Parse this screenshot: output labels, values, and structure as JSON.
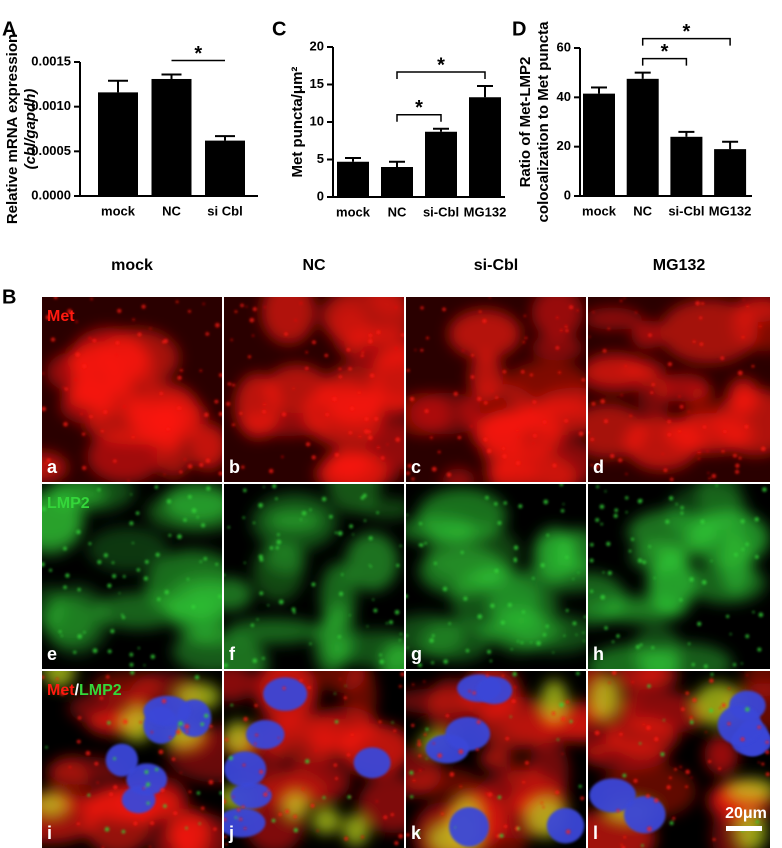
{
  "chart_data": [
    {
      "type": "bar",
      "panel": "A",
      "ylabel": [
        "Relative mRNA expression",
        "(cbl/gapdh)"
      ],
      "categories": [
        "mock",
        "NC",
        "si Cbl"
      ],
      "values": [
        0.00116,
        0.00131,
        0.00062
      ],
      "errors": [
        0.00013,
        5e-05,
        5e-05
      ],
      "color": "#000000",
      "ylim": [
        0,
        0.0015
      ],
      "yticks": [
        {
          "value": 0,
          "label": "0.0000"
        },
        0.0005,
        {
          "value": 0.001,
          "label": "0.0010"
        },
        0.0015
      ],
      "significance": [
        {
          "between": [
            "NC",
            "si Cbl"
          ],
          "label": "*"
        }
      ]
    },
    {
      "type": "bar",
      "panel": "C",
      "ylabel": [
        "Met puncta/μm²"
      ],
      "categories": [
        "mock",
        "NC",
        "si-Cbl",
        "MG132"
      ],
      "values": [
        4.7,
        4.0,
        8.7,
        13.3
      ],
      "errors": [
        0.5,
        0.7,
        0.4,
        1.5
      ],
      "color": "#000000",
      "ylim": [
        0,
        20
      ],
      "yticks": [
        0,
        5,
        10,
        15,
        20
      ],
      "significance": [
        {
          "between": [
            "NC",
            "si-Cbl"
          ],
          "label": "*"
        },
        {
          "between": [
            "NC",
            "MG132"
          ],
          "label": "*"
        }
      ]
    },
    {
      "type": "bar",
      "panel": "D",
      "ylabel": [
        "Ratio of Met-LMP2",
        "colocalization to Met puncta"
      ],
      "categories": [
        "mock",
        "NC",
        "si-Cbl",
        "MG132"
      ],
      "values": [
        41.5,
        47.5,
        24,
        19
      ],
      "errors": [
        2.5,
        2.5,
        2,
        3
      ],
      "color": "#000000",
      "ylim": [
        0,
        60
      ],
      "yticks": [
        0,
        20,
        40,
        60
      ],
      "significance": [
        {
          "between": [
            "NC",
            "si-Cbl"
          ],
          "label": "*"
        },
        {
          "between": [
            "NC",
            "MG132"
          ],
          "label": "*"
        }
      ]
    }
  ],
  "images": {
    "panel": "B",
    "columns": [
      "mock",
      "NC",
      "si-Cbl",
      "MG132"
    ],
    "rows": [
      [
        "Met"
      ],
      [
        "LMP2"
      ],
      [
        "Met",
        "/",
        "LMP2"
      ]
    ],
    "labels": [
      "a",
      "b",
      "c",
      "d",
      "e",
      "f",
      "g",
      "h",
      "i",
      "j",
      "k",
      "l"
    ],
    "scale_bar": "20μm"
  }
}
